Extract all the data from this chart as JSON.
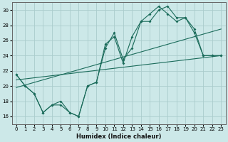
{
  "xlabel": "Humidex (Indice chaleur)",
  "bg_color": "#cce8e8",
  "grid_color": "#aacccc",
  "line_color": "#1a6b5a",
  "xlim": [
    -0.5,
    23.5
  ],
  "ylim": [
    15,
    31
  ],
  "xticks": [
    0,
    1,
    2,
    3,
    4,
    5,
    6,
    7,
    8,
    9,
    10,
    11,
    12,
    13,
    14,
    15,
    16,
    17,
    18,
    19,
    20,
    21,
    22,
    23
  ],
  "yticks": [
    16,
    18,
    20,
    22,
    24,
    26,
    28,
    30
  ],
  "line1_x": [
    0,
    1,
    2,
    3,
    4,
    5,
    6,
    7,
    8,
    9,
    10,
    11,
    12,
    13,
    14,
    15,
    16,
    17,
    18,
    19,
    20,
    21,
    22,
    23
  ],
  "line1_y": [
    21.5,
    20.0,
    19.0,
    16.5,
    17.5,
    18.0,
    16.5,
    16.0,
    20.0,
    20.5,
    25.5,
    26.5,
    23.0,
    26.5,
    28.5,
    29.5,
    30.5,
    29.5,
    28.5,
    29.0,
    27.5,
    24.0,
    24.0,
    24.0
  ],
  "line2_x": [
    0,
    1,
    2,
    3,
    4,
    5,
    6,
    7,
    8,
    9,
    10,
    11,
    12,
    13,
    14,
    15,
    16,
    17,
    18,
    19,
    20,
    21,
    22,
    23
  ],
  "line2_y": [
    21.5,
    20.0,
    19.0,
    16.5,
    17.5,
    17.5,
    16.5,
    16.0,
    20.0,
    20.5,
    25.0,
    27.0,
    23.5,
    25.0,
    28.5,
    28.5,
    30.0,
    30.5,
    29.0,
    29.0,
    27.0,
    24.0,
    24.0,
    24.0
  ],
  "trend1_x": [
    0,
    23
  ],
  "trend1_y": [
    20.8,
    24.0
  ],
  "trend2_x": [
    0,
    23
  ],
  "trend2_y": [
    19.8,
    27.5
  ]
}
